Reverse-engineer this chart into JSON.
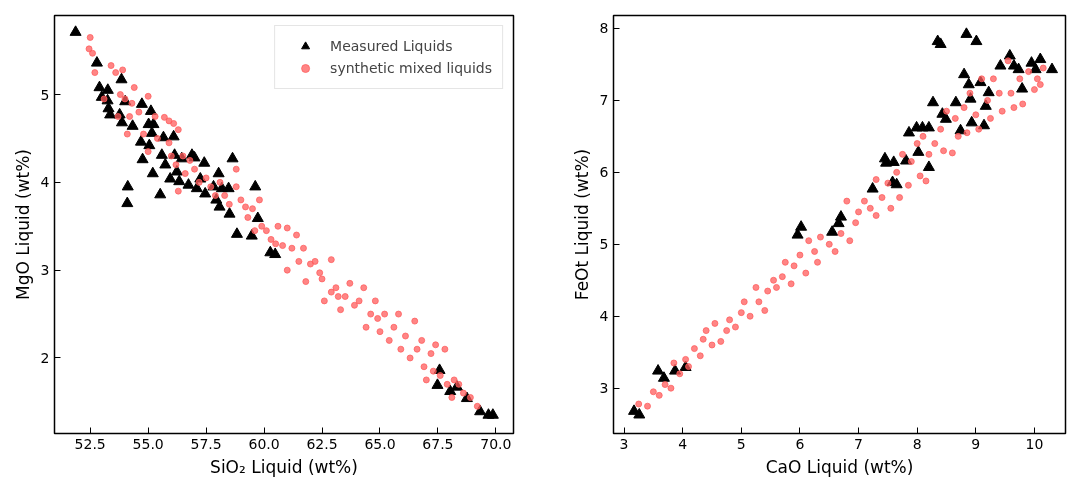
{
  "chart_data": [
    {
      "type": "scatter",
      "xlabel": "SiO₂ Liquid (wt%)",
      "ylabel": "MgO Liquid (wt%)",
      "xlim": [
        50.96,
        70.76
      ],
      "ylim": [
        1.14,
        5.9
      ],
      "xticks": [
        {
          "value": 52.5,
          "label": "52.5"
        },
        {
          "value": 55,
          "label": "55.0"
        },
        {
          "value": 57.5,
          "label": "57.5"
        },
        {
          "value": 60,
          "label": "60.0"
        },
        {
          "value": 62.5,
          "label": "62.5"
        },
        {
          "value": 65,
          "label": "65.0"
        },
        {
          "value": 67.5,
          "label": "67.5"
        },
        {
          "value": 70,
          "label": "70.0"
        }
      ],
      "yticks": [
        2,
        3,
        4,
        5
      ],
      "grid": false,
      "legend": "top right",
      "series": [
        {
          "name": "synthetic mixed liquids",
          "color": "#ff5c5c",
          "marker": "circle",
          "x": [
            52.5,
            52.45,
            52.6,
            52.7,
            53.1,
            53.4,
            53.6,
            53.7,
            53.9,
            53.8,
            54.0,
            54.2,
            54.4,
            54.3,
            54.1,
            54.6,
            54.8,
            55.0,
            55.0,
            55.3,
            55.4,
            55.7,
            55.9,
            55.9,
            56.1,
            56.3,
            56.5,
            56.2,
            56.0,
            56.6,
            56.3,
            56.8,
            57.0,
            57.2,
            57.5,
            57.7,
            57.9,
            58.1,
            58.3,
            58.5,
            58.8,
            58.8,
            59.0,
            59.2,
            59.3,
            59.5,
            59.8,
            59.6,
            59.9,
            60.1,
            60.3,
            60.5,
            60.6,
            60.8,
            61.0,
            61.0,
            61.2,
            61.4,
            61.5,
            61.7,
            61.8,
            62.0,
            62.2,
            62.4,
            62.5,
            62.6,
            62.9,
            62.9,
            63.1,
            63.2,
            63.3,
            63.5,
            63.7,
            63.9,
            64.1,
            64.3,
            64.4,
            64.6,
            64.8,
            64.9,
            65.0,
            65.2,
            65.4,
            65.6,
            65.8,
            65.9,
            66.1,
            66.3,
            66.5,
            66.6,
            66.8,
            66.9,
            67.0,
            67.2,
            67.4,
            67.3,
            67.6,
            67.8,
            67.9,
            68.1,
            68.2,
            68.4,
            68.6,
            68.9,
            69.2
          ],
          "values": [
            5.65,
            5.52,
            5.47,
            5.25,
            4.95,
            5.33,
            5.25,
            4.75,
            5.28,
            5.0,
            4.95,
            4.75,
            5.08,
            4.9,
            4.55,
            4.8,
            4.55,
            4.98,
            4.35,
            4.75,
            4.5,
            4.74,
            4.7,
            4.45,
            4.67,
            4.6,
            4.3,
            4.2,
            4.3,
            4.1,
            3.9,
            4.25,
            4.15,
            4.0,
            4.05,
            3.95,
            3.85,
            4.0,
            3.85,
            3.75,
            4.15,
            3.95,
            3.8,
            3.72,
            3.6,
            3.7,
            3.8,
            3.45,
            3.5,
            3.45,
            3.35,
            3.3,
            3.5,
            3.28,
            3.48,
            3.0,
            3.25,
            3.4,
            3.1,
            3.25,
            2.87,
            3.07,
            3.1,
            2.97,
            2.9,
            2.65,
            3.12,
            2.75,
            2.8,
            2.7,
            2.55,
            2.7,
            2.85,
            2.6,
            2.65,
            2.8,
            2.35,
            2.5,
            2.65,
            2.45,
            2.3,
            2.5,
            2.2,
            2.35,
            2.5,
            2.1,
            2.25,
            2.0,
            2.42,
            2.1,
            2.2,
            1.9,
            1.75,
            2.05,
            2.15,
            1.85,
            1.8,
            2.1,
            1.7,
            1.55,
            1.75,
            1.7,
            1.6,
            1.55,
            1.45
          ]
        },
        {
          "name": "Measured Liquids",
          "color": "#000000",
          "marker": "triangle",
          "x": [
            51.87,
            52.79,
            52.9,
            53.0,
            53.26,
            53.25,
            53.29,
            53.36,
            53.77,
            53.85,
            53.87,
            54.01,
            54.33,
            54.12,
            54.1,
            54.73,
            54.69,
            54.76,
            55.12,
            55.02,
            55.23,
            55.16,
            55.05,
            55.2,
            55.52,
            55.66,
            55.59,
            55.74,
            55.95,
            56.1,
            56.14,
            56.24,
            56.34,
            56.45,
            56.74,
            56.89,
            57.0,
            57.1,
            57.25,
            57.42,
            57.46,
            57.82,
            57.94,
            58.04,
            58.08,
            58.18,
            58.47,
            58.51,
            58.64,
            58.83,
            59.47,
            59.62,
            59.73,
            60.27,
            60.48,
            67.57,
            67.48,
            68.03,
            68.32,
            68.75,
            69.32,
            69.68,
            69.87
          ],
          "values": [
            5.71,
            5.36,
            5.08,
            4.97,
            5.05,
            4.93,
            4.84,
            4.77,
            4.77,
            5.17,
            4.68,
            4.92,
            4.64,
            3.95,
            3.76,
            4.89,
            4.46,
            4.26,
            4.81,
            4.66,
            4.66,
            4.56,
            4.42,
            4.1,
            3.86,
            4.51,
            4.31,
            4.2,
            4.04,
            4.52,
            4.31,
            4.12,
            4.01,
            4.27,
            3.97,
            4.31,
            4.28,
            3.93,
            4.04,
            4.22,
            3.87,
            3.95,
            3.8,
            4.1,
            3.72,
            3.93,
            3.93,
            3.64,
            4.27,
            3.41,
            3.39,
            3.95,
            3.59,
            3.2,
            3.18,
            1.86,
            1.69,
            1.62,
            1.67,
            1.54,
            1.39,
            1.35,
            1.35
          ]
        }
      ]
    },
    {
      "type": "scatter",
      "xlabel": "CaO Liquid (wt%)",
      "ylabel": "FeOt Liquid (wt%)",
      "xlim": [
        2.82,
        10.53
      ],
      "ylim": [
        2.37,
        8.18
      ],
      "xticks": [
        3,
        4,
        5,
        6,
        7,
        8,
        9,
        10
      ],
      "yticks": [
        3,
        4,
        5,
        6,
        7,
        8
      ],
      "grid": false,
      "legend": false,
      "series": [
        {
          "color": "#ff5c5c",
          "marker": "circle",
          "x": [
            3.25,
            3.4,
            3.5,
            3.6,
            3.7,
            3.8,
            3.85,
            3.95,
            4.05,
            4.1,
            4.2,
            4.3,
            4.35,
            4.4,
            4.5,
            4.55,
            4.65,
            4.75,
            4.8,
            4.9,
            5.0,
            5.05,
            5.15,
            5.25,
            5.3,
            5.4,
            5.45,
            5.55,
            5.6,
            5.7,
            5.75,
            5.85,
            5.9,
            6.0,
            6.1,
            6.15,
            6.25,
            6.3,
            6.35,
            6.5,
            6.6,
            6.7,
            6.8,
            6.85,
            6.95,
            7.0,
            7.1,
            7.2,
            7.3,
            7.3,
            7.4,
            7.5,
            7.55,
            7.65,
            7.7,
            7.75,
            7.85,
            7.9,
            8.0,
            8.05,
            8.1,
            8.15,
            8.2,
            8.3,
            8.4,
            8.45,
            8.5,
            8.6,
            8.65,
            8.7,
            8.8,
            8.85,
            8.9,
            9.0,
            9.05,
            9.1,
            9.2,
            9.25,
            9.3,
            9.4,
            9.45,
            9.55,
            9.6,
            9.65,
            9.75,
            9.8,
            9.9,
            10.0,
            10.05,
            10.1,
            10.15
          ],
          "values": [
            2.78,
            2.75,
            2.95,
            2.9,
            3.05,
            3.0,
            3.35,
            3.2,
            3.4,
            3.3,
            3.55,
            3.45,
            3.68,
            3.8,
            3.6,
            3.9,
            3.65,
            3.8,
            3.95,
            3.85,
            4.05,
            4.2,
            4.0,
            4.4,
            4.2,
            4.08,
            4.35,
            4.5,
            4.4,
            4.55,
            4.75,
            4.45,
            4.7,
            4.85,
            4.6,
            5.05,
            4.9,
            4.75,
            5.1,
            5.0,
            4.9,
            5.15,
            5.6,
            5.05,
            5.3,
            5.45,
            5.6,
            5.5,
            5.9,
            5.4,
            5.65,
            5.85,
            5.5,
            6.0,
            5.65,
            6.25,
            5.82,
            6.15,
            6.4,
            5.95,
            6.5,
            5.88,
            6.25,
            6.4,
            6.6,
            6.3,
            6.85,
            6.27,
            6.75,
            6.5,
            6.9,
            6.55,
            7.1,
            6.8,
            6.6,
            7.3,
            7.0,
            6.75,
            7.3,
            7.1,
            6.85,
            7.55,
            7.1,
            6.9,
            7.3,
            6.95,
            7.4,
            7.15,
            7.3,
            7.22,
            7.45
          ]
        },
        {
          "color": "#000000",
          "marker": "triangle",
          "x": [
            3.17,
            3.26,
            3.58,
            3.68,
            3.87,
            4.05,
            5.96,
            6.02,
            6.55,
            6.66,
            6.7,
            7.24,
            7.45,
            7.47,
            7.6,
            7.58,
            7.65,
            7.81,
            7.86,
            7.99,
            8.09,
            8.02,
            8.2,
            8.2,
            8.27,
            8.35,
            8.4,
            8.43,
            8.49,
            8.66,
            8.74,
            8.8,
            8.84,
            8.88,
            8.91,
            8.93,
            9.01,
            9.08,
            9.14,
            9.17,
            9.22,
            9.42,
            9.58,
            9.65,
            9.73,
            9.79,
            9.95,
            10.02,
            10.1,
            10.3
          ],
          "values": [
            2.68,
            2.63,
            3.24,
            3.14,
            3.24,
            3.29,
            5.13,
            5.24,
            5.17,
            5.29,
            5.38,
            5.77,
            6.19,
            6.13,
            6.14,
            5.86,
            5.83,
            6.16,
            6.55,
            6.62,
            6.62,
            6.28,
            6.07,
            6.62,
            6.97,
            7.82,
            7.78,
            6.81,
            6.74,
            6.97,
            6.58,
            7.36,
            7.92,
            7.22,
            7.02,
            6.69,
            7.82,
            7.25,
            6.65,
            6.92,
            7.11,
            7.48,
            7.62,
            7.48,
            7.43,
            7.16,
            7.52,
            7.43,
            7.57,
            7.43
          ]
        }
      ]
    }
  ]
}
